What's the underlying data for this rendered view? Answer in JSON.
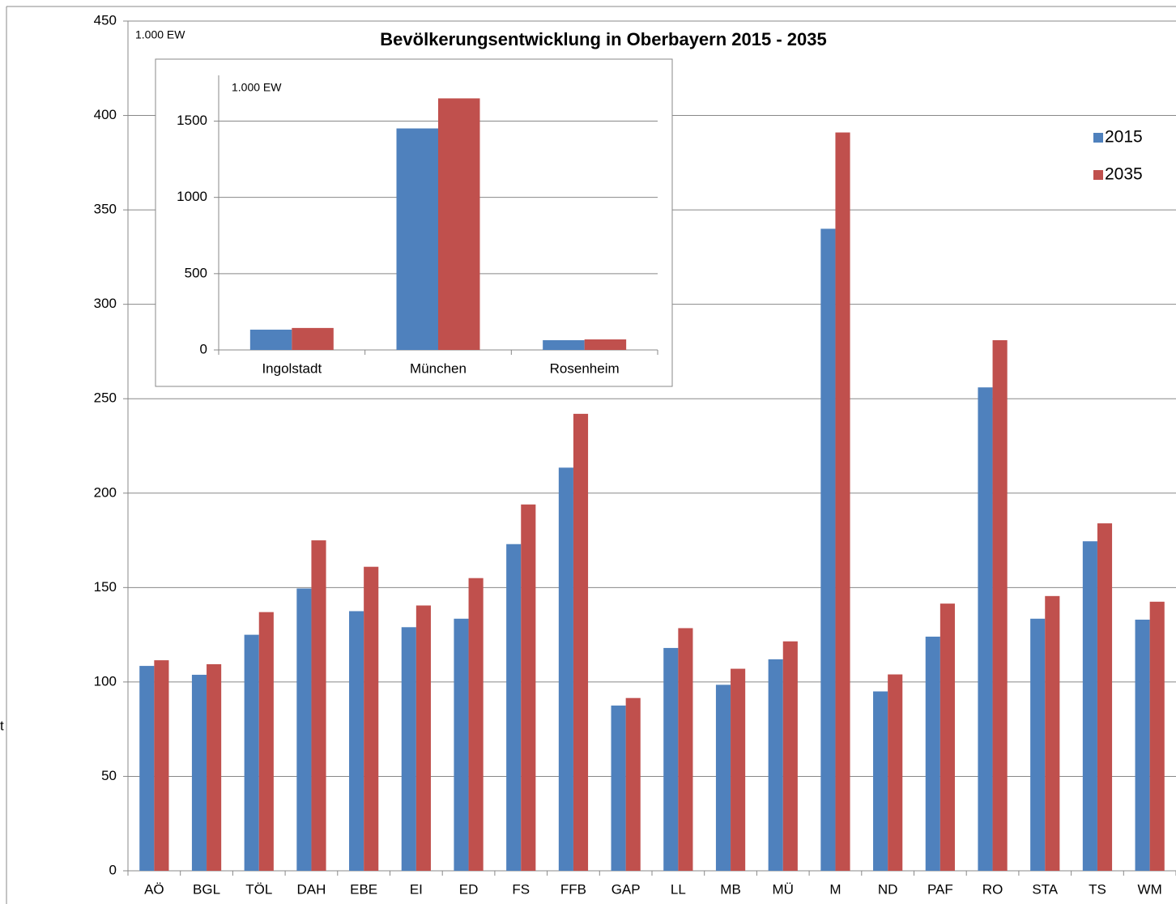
{
  "side_label": "t",
  "chart_data": [
    {
      "type": "bar",
      "title": "Bevölkerungsentwicklung in Oberbayern 2015 - 2035",
      "unit_label": "1.000 EW",
      "categories": [
        "AÖ",
        "BGL",
        "TÖL",
        "DAH",
        "EBE",
        "EI",
        "ED",
        "FS",
        "FFB",
        "GAP",
        "LL",
        "MB",
        "MÜ",
        "M",
        "ND",
        "PAF",
        "RO",
        "STA",
        "TS",
        "WM"
      ],
      "series": [
        {
          "name": "2015",
          "color": "#4f81bd",
          "values": [
            108.5,
            103.8,
            125,
            149.5,
            137.5,
            129,
            133.5,
            173,
            213.5,
            87.5,
            118,
            98.5,
            112,
            340,
            95,
            124,
            256,
            133.5,
            174.5,
            133
          ]
        },
        {
          "name": "2035",
          "color": "#c0504d",
          "values": [
            111.5,
            109.4,
            137,
            175,
            161,
            140.5,
            155,
            194,
            242,
            91.5,
            128.5,
            107,
            121.5,
            391,
            104,
            141.5,
            281,
            145.5,
            184,
            142.5
          ]
        }
      ],
      "ylim": [
        0,
        450
      ],
      "yticks": [
        0,
        50,
        100,
        150,
        200,
        250,
        300,
        350,
        400,
        450
      ],
      "grid": true,
      "legend": "upper right"
    },
    {
      "type": "bar",
      "unit_label": "1.000 EW",
      "categories": [
        "Ingolstadt",
        "München",
        "Rosenheim"
      ],
      "series": [
        {
          "name": "2015",
          "color": "#4f81bd",
          "values": [
            133,
            1452,
            64
          ]
        },
        {
          "name": "2035",
          "color": "#c0504d",
          "values": [
            144,
            1649,
            69
          ]
        }
      ],
      "ylim": [
        0,
        1800
      ],
      "yticks": [
        0,
        500,
        1000,
        1500
      ],
      "grid": true
    }
  ]
}
